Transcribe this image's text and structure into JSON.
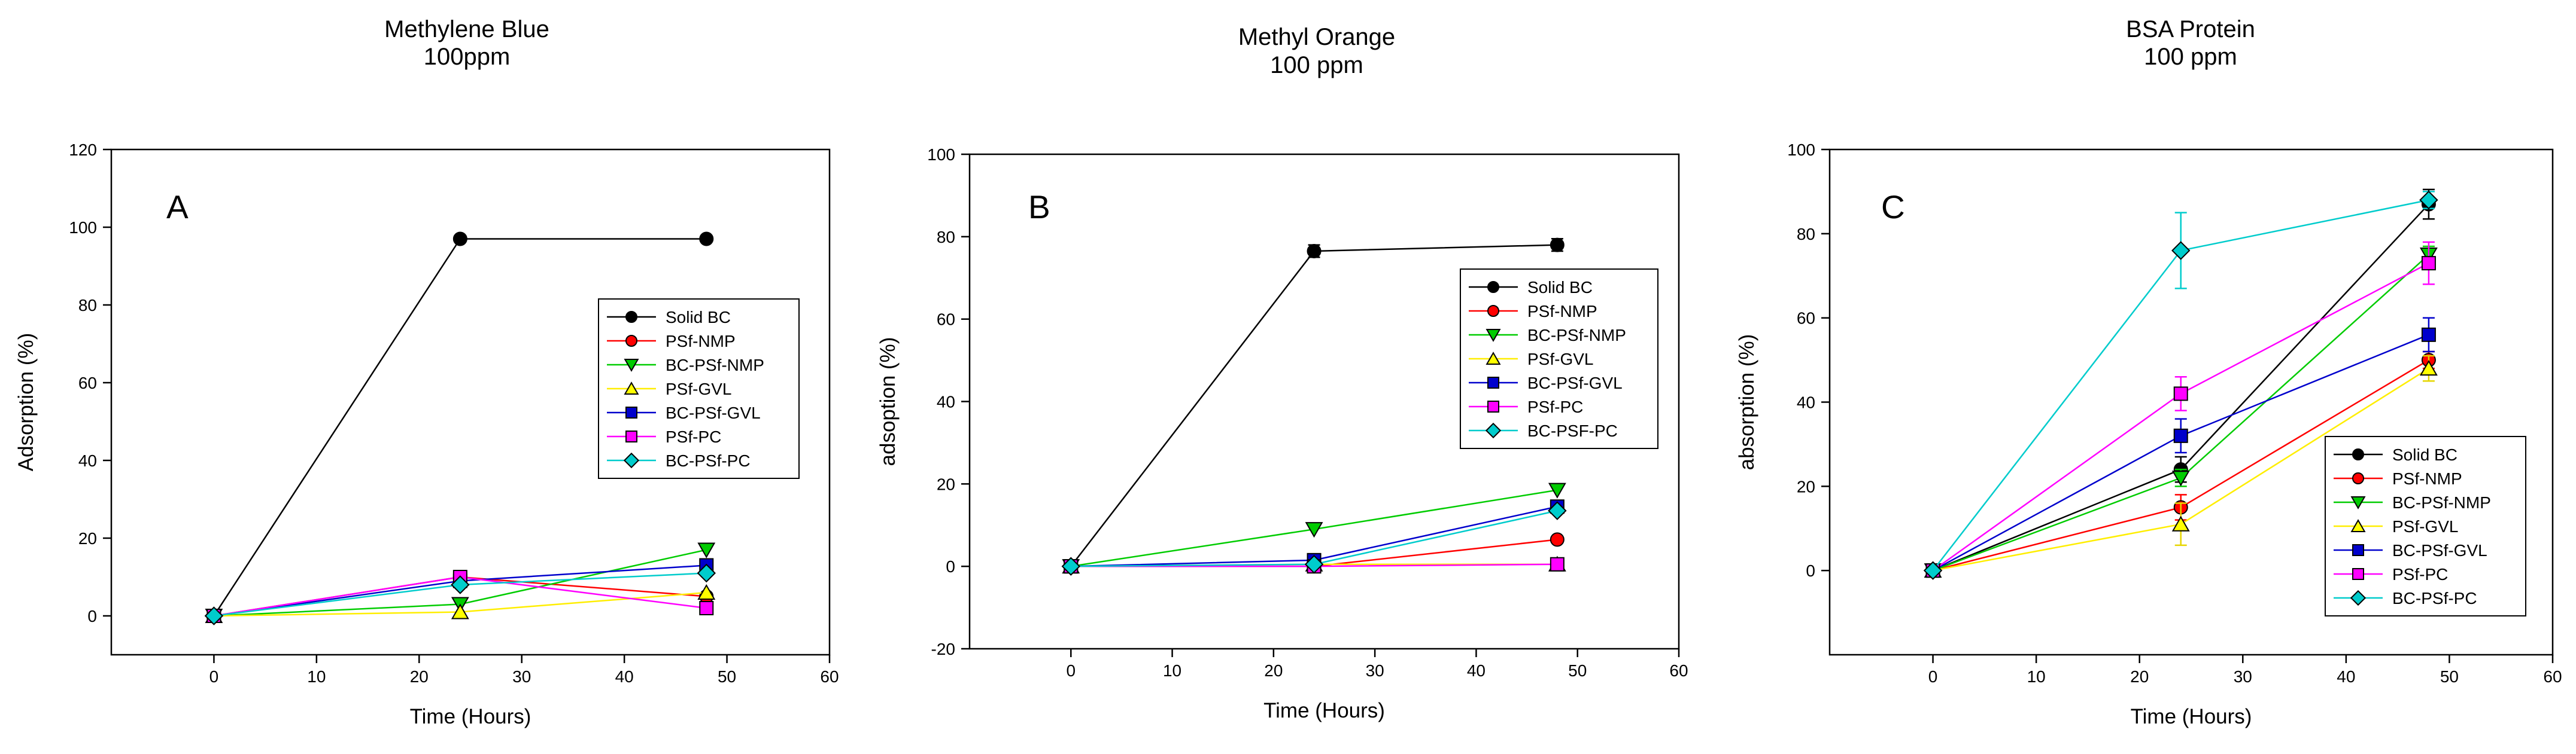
{
  "chart_data": [
    {
      "type": "line",
      "panel_label": "A",
      "title": "Methylene Blue",
      "subtitle": "100ppm",
      "xlabel": "Time (Hours)",
      "ylabel": "Adsorption (%)",
      "xlim": [
        -10,
        60
      ],
      "ylim": [
        -10,
        120
      ],
      "xticks": [
        0,
        10,
        20,
        30,
        40,
        50,
        60
      ],
      "yticks": [
        0,
        20,
        40,
        60,
        80,
        100,
        120
      ],
      "x": [
        0,
        24,
        48
      ],
      "legend_position": "center-right",
      "series": [
        {
          "name": "Solid BC",
          "marker": "circle",
          "color": "#000000",
          "values": [
            0,
            97,
            97
          ],
          "errors": [
            0,
            0,
            0
          ]
        },
        {
          "name": "PSf-NMP",
          "marker": "circle",
          "color": "#ff0000",
          "values": [
            0,
            10,
            5
          ],
          "errors": [
            0,
            0,
            0
          ]
        },
        {
          "name": "BC-PSf-NMP",
          "marker": "triangle-down",
          "color": "#00cc00",
          "values": [
            0,
            3,
            17
          ],
          "errors": [
            0,
            0,
            0
          ]
        },
        {
          "name": "PSf-GVL",
          "marker": "triangle-up",
          "color": "#ffff00",
          "values": [
            0,
            1,
            6
          ],
          "errors": [
            0,
            0,
            0
          ]
        },
        {
          "name": "BC-PSf-GVL",
          "marker": "square",
          "color": "#0000cc",
          "values": [
            0,
            9,
            13
          ],
          "errors": [
            0,
            0,
            0
          ]
        },
        {
          "name": "PSf-PC",
          "marker": "square",
          "color": "#ff00ff",
          "values": [
            0,
            10,
            2
          ],
          "errors": [
            0,
            0,
            0
          ]
        },
        {
          "name": "BC-PSf-PC",
          "marker": "diamond",
          "color": "#00cccc",
          "values": [
            0,
            8,
            11
          ],
          "errors": [
            0,
            0,
            0
          ]
        }
      ]
    },
    {
      "type": "line",
      "panel_label": "B",
      "title": "Methyl Orange",
      "subtitle": "100 ppm",
      "xlabel": "Time (Hours)",
      "ylabel": "adsoption (%)",
      "xlim": [
        -10,
        60
      ],
      "ylim": [
        -20,
        100
      ],
      "xticks": [
        0,
        10,
        20,
        30,
        40,
        50,
        60
      ],
      "yticks": [
        -20,
        0,
        20,
        40,
        60,
        80,
        100
      ],
      "x": [
        0,
        24,
        48
      ],
      "legend_position": "center-right",
      "series": [
        {
          "name": "Solid BC",
          "marker": "circle",
          "color": "#000000",
          "values": [
            0,
            76.5,
            78
          ],
          "errors": [
            0,
            1.5,
            1.5
          ]
        },
        {
          "name": "PSf-NMP",
          "marker": "circle",
          "color": "#ff0000",
          "values": [
            0,
            0,
            6.5
          ],
          "errors": [
            0,
            0,
            0
          ]
        },
        {
          "name": "BC-PSf-NMP",
          "marker": "triangle-down",
          "color": "#00cc00",
          "values": [
            0,
            9,
            18.5
          ],
          "errors": [
            0,
            0,
            0
          ]
        },
        {
          "name": "PSf-GVL",
          "marker": "triangle-up",
          "color": "#ffff00",
          "values": [
            0,
            0.5,
            0.5
          ],
          "errors": [
            0,
            0,
            0
          ]
        },
        {
          "name": "BC-PSf-GVL",
          "marker": "square",
          "color": "#0000cc",
          "values": [
            0,
            1.5,
            14.5
          ],
          "errors": [
            0,
            0,
            0
          ]
        },
        {
          "name": "PSf-PC",
          "marker": "square",
          "color": "#ff00ff",
          "values": [
            0,
            0,
            0.5
          ],
          "errors": [
            0,
            0,
            0
          ]
        },
        {
          "name": "BC-PSF-PC",
          "marker": "diamond",
          "color": "#00cccc",
          "values": [
            0,
            0.5,
            13.5
          ],
          "errors": [
            0,
            0,
            0
          ]
        }
      ]
    },
    {
      "type": "line",
      "panel_label": "C",
      "title": "BSA Protein",
      "subtitle": "100 ppm",
      "xlabel": "Time (Hours)",
      "ylabel": "absorption (%)",
      "xlim": [
        -10,
        60
      ],
      "ylim": [
        -20,
        100
      ],
      "xticks": [
        0,
        10,
        20,
        30,
        40,
        50,
        60
      ],
      "yticks": [
        0,
        20,
        40,
        60,
        80,
        100
      ],
      "x": [
        0,
        24,
        48
      ],
      "legend_position": "lower-right",
      "series": [
        {
          "name": "Solid BC",
          "marker": "circle",
          "color": "#000000",
          "values": [
            0,
            24,
            87
          ],
          "errors": [
            0,
            3,
            3.5
          ]
        },
        {
          "name": "PSf-NMP",
          "marker": "circle",
          "color": "#ff0000",
          "values": [
            0,
            15,
            50
          ],
          "errors": [
            0,
            3,
            2
          ]
        },
        {
          "name": "BC-PSf-NMP",
          "marker": "triangle-down",
          "color": "#00cc00",
          "values": [
            0,
            22,
            75
          ],
          "errors": [
            0,
            2,
            2
          ]
        },
        {
          "name": "PSf-GVL",
          "marker": "triangle-up",
          "color": "#ffff00",
          "values": [
            0,
            11,
            48
          ],
          "errors": [
            0,
            5,
            3
          ]
        },
        {
          "name": "BC-PSf-GVL",
          "marker": "square",
          "color": "#0000cc",
          "values": [
            0,
            32,
            56
          ],
          "errors": [
            0,
            4,
            4
          ]
        },
        {
          "name": "PSf-PC",
          "marker": "square",
          "color": "#ff00ff",
          "values": [
            0,
            42,
            73
          ],
          "errors": [
            0,
            4,
            5
          ]
        },
        {
          "name": "BC-PSf-PC",
          "marker": "diamond",
          "color": "#00cccc",
          "values": [
            0,
            76,
            88
          ],
          "errors": [
            0,
            9,
            2
          ]
        }
      ]
    }
  ]
}
